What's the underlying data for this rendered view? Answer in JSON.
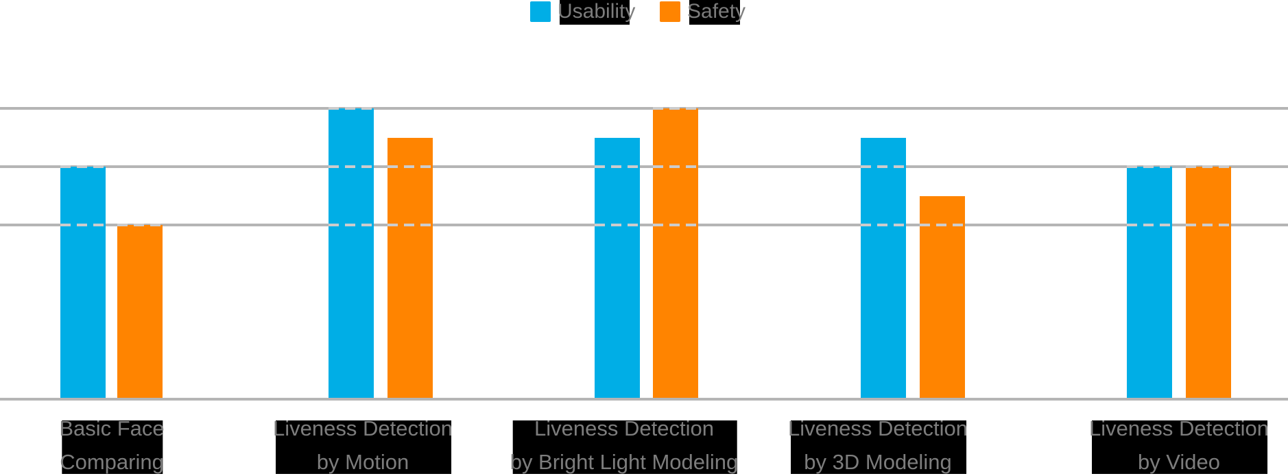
{
  "legend": {
    "items": [
      {
        "label": "Usability"
      },
      {
        "label": "Safety"
      }
    ]
  },
  "colors": {
    "usability": "#00AEE6",
    "safety": "#FF8400",
    "gridline": "#B5B5B5",
    "dash_over_bar": "#CCCCCC",
    "label_text": "#7D7D7D",
    "label_background": "#000000",
    "background": "#FFFFFF"
  },
  "chart_data": {
    "type": "bar",
    "title": "",
    "xlabel": "",
    "ylabel": "",
    "categories": [
      {
        "line1": "Basic Face",
        "line2": "Comparing"
      },
      {
        "line1": "Liveness Detection",
        "line2": "by Motion"
      },
      {
        "line1": "Liveness Detection",
        "line2": "by Bright Light Modeling"
      },
      {
        "line1": "Liveness Detection",
        "line2": "by 3D Modeling"
      },
      {
        "line1": "Liveness Detection",
        "line2": "by Video"
      }
    ],
    "series": [
      {
        "name": "Usability",
        "color": "#00AEE6",
        "values": [
          4,
          5,
          4.5,
          4.5,
          4
        ]
      },
      {
        "name": "Safety",
        "color": "#FF8400",
        "values": [
          3,
          4.5,
          5,
          3.5,
          4
        ]
      }
    ],
    "ylim": [
      0,
      5
    ],
    "gridline_values": [
      5,
      4,
      3
    ],
    "value_axis_labels": "none",
    "grid": "horizontal-only",
    "legend_position": "top-center"
  }
}
